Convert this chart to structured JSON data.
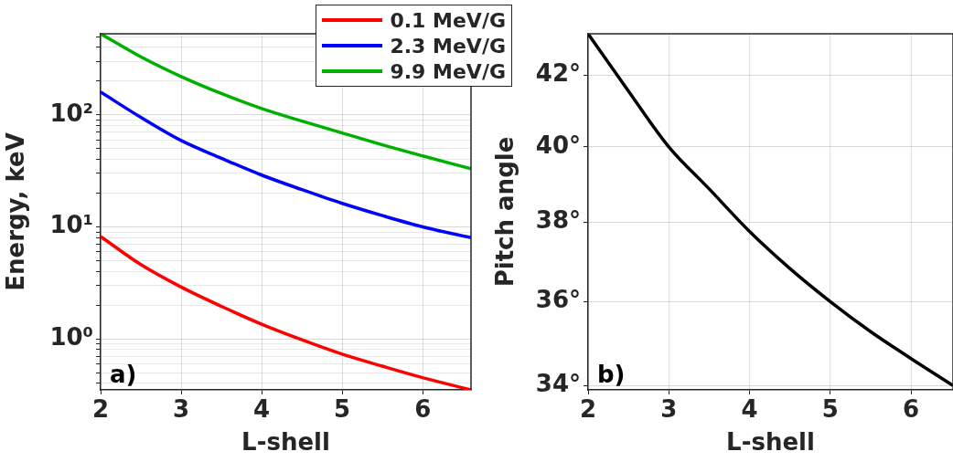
{
  "chart_data": [
    {
      "type": "line",
      "xlabel": "L-shell",
      "ylabel": "Energy, keV",
      "annotations": [
        "a)"
      ],
      "legend": "top right",
      "grid": true,
      "log": "y",
      "marker": "none",
      "line_style": "solid",
      "x": [
        2,
        2.5,
        3,
        3.5,
        4,
        4.5,
        5,
        5.5,
        6,
        6.6
      ],
      "series": [
        {
          "name": "0.1 MeV/G",
          "color": "#ff0000",
          "values": [
            8.2,
            4.6,
            2.9,
            1.95,
            1.35,
            0.98,
            0.73,
            0.57,
            0.45,
            0.35
          ]
        },
        {
          "name": "2.3 MeV/G",
          "color": "#0000ff",
          "values": [
            160,
            95,
            59,
            41,
            29,
            21.5,
            16.2,
            12.6,
            10,
            8
          ]
        },
        {
          "name": "9.9 MeV/G",
          "color": "#00b000",
          "values": [
            530,
            330,
            220,
            155,
            114,
            88,
            69,
            54,
            43,
            33
          ]
        }
      ],
      "xlim": [
        2,
        6.6
      ],
      "xticks": [
        2,
        3,
        4,
        5,
        6
      ],
      "ylim": [
        0.35,
        530
      ],
      "yticks": [
        {
          "value": 0.4,
          "label": null
        },
        {
          "value": 0.5,
          "label": null
        },
        {
          "value": 0.6,
          "label": null
        },
        {
          "value": 0.7,
          "label": null
        },
        {
          "value": 0.8,
          "label": null
        },
        {
          "value": 0.9,
          "label": null
        },
        {
          "value": 1,
          "label": "10⁰"
        },
        {
          "value": 2,
          "label": null
        },
        {
          "value": 3,
          "label": null
        },
        {
          "value": 4,
          "label": null
        },
        {
          "value": 5,
          "label": null
        },
        {
          "value": 6,
          "label": null
        },
        {
          "value": 7,
          "label": null
        },
        {
          "value": 8,
          "label": null
        },
        {
          "value": 9,
          "label": null
        },
        {
          "value": 10,
          "label": "10¹"
        },
        {
          "value": 20,
          "label": null
        },
        {
          "value": 30,
          "label": null
        },
        {
          "value": 40,
          "label": null
        },
        {
          "value": 50,
          "label": null
        },
        {
          "value": 60,
          "label": null
        },
        {
          "value": 70,
          "label": null
        },
        {
          "value": 80,
          "label": null
        },
        {
          "value": 90,
          "label": null
        },
        {
          "value": 100,
          "label": "10²"
        },
        {
          "value": 200,
          "label": null
        },
        {
          "value": 300,
          "label": null
        },
        {
          "value": 400,
          "label": null
        },
        {
          "value": 500,
          "label": null
        }
      ]
    },
    {
      "type": "line",
      "xlabel": "L-shell",
      "ylabel": "Pitch angle",
      "annotations": [
        "b)"
      ],
      "grid": true,
      "log": "y",
      "marker": "none",
      "line_style": "solid",
      "x": [
        2,
        2.5,
        3,
        3.5,
        4,
        4.5,
        5,
        5.5,
        6,
        6.52
      ],
      "series": [
        {
          "color": "#000000",
          "values": [
            43.2,
            41.55,
            40,
            38.87,
            37.76,
            36.82,
            36,
            35.27,
            34.63,
            34
          ]
        }
      ],
      "xlim": [
        2,
        6.52
      ],
      "xticks": [
        2,
        3,
        4,
        5,
        6
      ],
      "ylim": [
        33.9,
        43.2
      ],
      "yticks": [
        {
          "value": 34,
          "label": "34°"
        },
        {
          "value": 36,
          "label": "36°"
        },
        {
          "value": 38,
          "label": "38°"
        },
        {
          "value": 40,
          "label": "40°"
        },
        {
          "value": 42,
          "label": "42°"
        }
      ]
    }
  ]
}
